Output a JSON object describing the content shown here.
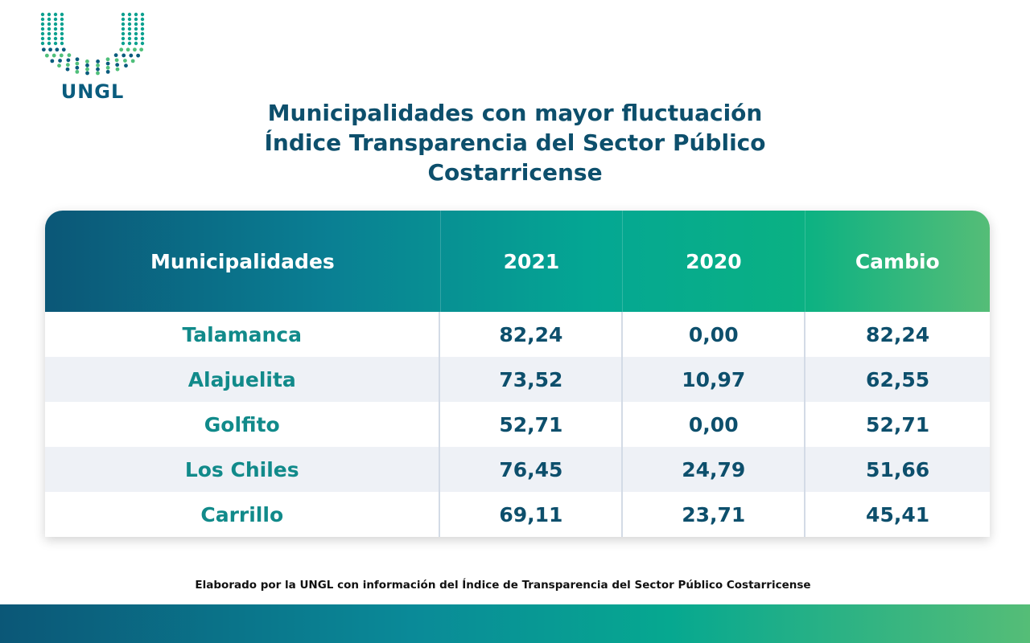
{
  "logo": {
    "text": "UNGL",
    "colors": [
      "#0a5c7e",
      "#0aa08f",
      "#4fbf7a"
    ]
  },
  "title": {
    "line1": "Municipalidades con mayor fluctuación",
    "line2": "Índice Transparencia del Sector Público",
    "line3": "Costarricense"
  },
  "table": {
    "headers": [
      "Municipalidades",
      "2021",
      "2020",
      "Cambio"
    ],
    "rows": [
      [
        "Talamanca",
        "82,24",
        "0,00",
        "82,24"
      ],
      [
        "Alajuelita",
        "73,52",
        "10,97",
        "62,55"
      ],
      [
        "Golfito",
        "52,71",
        "0,00",
        "52,71"
      ],
      [
        "Los Chiles",
        "76,45",
        "24,79",
        "51,66"
      ],
      [
        "Carrillo",
        "69,11",
        "23,71",
        "45,41"
      ]
    ]
  },
  "footnote": "Elaborado por la UNGL con información del Índice de Transparencia del Sector Público Costarricense",
  "theme": {
    "primary": "#0d4f6c",
    "accent": "#118a8a",
    "gradient_start": "#0b5777",
    "gradient_end": "#55bd77"
  }
}
